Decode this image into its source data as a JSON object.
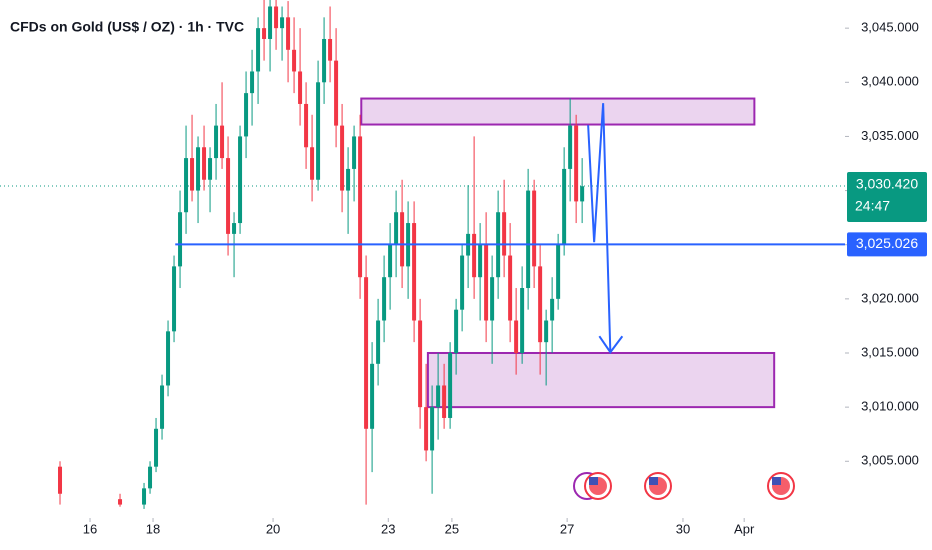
{
  "chart_data": {
    "type": "candlestick",
    "title": "CFDs on Gold (US$ / OZ) · 1h · TVC",
    "xlim": [
      0,
      140.8
    ],
    "ylim": [
      3000.5,
      3047.6
    ],
    "xticks": [
      {
        "value": 15,
        "label": "16"
      },
      {
        "value": 25.5,
        "label": "18"
      },
      {
        "value": 45.5,
        "label": "20"
      },
      {
        "value": 64.7,
        "label": "23"
      },
      {
        "value": 75.3,
        "label": "25"
      },
      {
        "value": 94.5,
        "label": "27"
      },
      {
        "value": 113.8,
        "label": "30"
      },
      {
        "value": 124,
        "label": "Apr"
      }
    ],
    "yticks": [
      {
        "value": 3005,
        "label": "3,005.000"
      },
      {
        "value": 3010,
        "label": "3,010.000"
      },
      {
        "value": 3015,
        "label": "3,015.000"
      },
      {
        "value": 3020,
        "label": "3,020.000"
      },
      {
        "value": 3025,
        "label": "3,025.000"
      },
      {
        "value": 3030,
        "label": "3,030.000"
      },
      {
        "value": 3035,
        "label": "3,035.000"
      },
      {
        "value": 3040,
        "label": "3,040.000"
      },
      {
        "value": 3045,
        "label": "3,045.000"
      }
    ],
    "up_color": "#089981",
    "down_color": "#f23645",
    "x": [
      10,
      20,
      24,
      25,
      26,
      27,
      28,
      29,
      30,
      31,
      32,
      33,
      34,
      35,
      36,
      37,
      38,
      39,
      40,
      41,
      42,
      43,
      44,
      45,
      46,
      47,
      48,
      49,
      50,
      51,
      52,
      53,
      54,
      55,
      56,
      57,
      58,
      59,
      60,
      61,
      62,
      63,
      64,
      65,
      66,
      67,
      68,
      69,
      70,
      71,
      72,
      73,
      74,
      75,
      76,
      77,
      78,
      79,
      80,
      81,
      82,
      83,
      84,
      85,
      86,
      87,
      88,
      89,
      90,
      91,
      92,
      93,
      94,
      95,
      96,
      97
    ],
    "open": [
      3004.5,
      3001.5,
      3001,
      3002.5,
      3004.5,
      3008,
      3012,
      3017,
      3023,
      3028,
      3033,
      3030,
      3034,
      3031,
      3033,
      3036,
      3033,
      3026,
      3027,
      3035,
      3039,
      3041,
      3045,
      3044,
      3047,
      3045,
      3046,
      3043,
      3041,
      3038,
      3034,
      3031,
      3040,
      3044,
      3042,
      3036,
      3030,
      3032,
      3035,
      3022,
      3008,
      3014,
      3018,
      3022,
      3025,
      3028,
      3023,
      3027,
      3018,
      3010,
      3006,
      3010,
      3012,
      3009,
      3015,
      3019,
      3024,
      3026,
      3022,
      3025,
      3018,
      3022,
      3028,
      3024,
      3018,
      3015,
      3021,
      3030,
      3023,
      3016,
      3018,
      3020,
      3025,
      3032,
      3036,
      3029
    ],
    "high": [
      3005,
      3002,
      3003,
      3005,
      3009,
      3013,
      3018,
      3024,
      3030,
      3036,
      3037,
      3035,
      3036,
      3034,
      3038,
      3040,
      3035,
      3028,
      3036,
      3041,
      3043,
      3046,
      3048,
      3048,
      3048,
      3047,
      3047.5,
      3046,
      3045,
      3040,
      3037,
      3042,
      3046,
      3047,
      3045,
      3038,
      3034,
      3036,
      3037,
      3024,
      3016,
      3020,
      3024,
      3027,
      3030,
      3031,
      3029,
      3029,
      3020,
      3014,
      3012,
      3015,
      3014,
      3016,
      3020,
      3025,
      3030.5,
      3035,
      3027,
      3028,
      3024,
      3030,
      3031,
      3027,
      3021,
      3023,
      3032,
      3031,
      3025,
      3019,
      3022,
      3026,
      3034,
      3038.5,
      3037,
      3033
    ],
    "low": [
      3001,
      3000.8,
      3000.6,
      3002,
      3004,
      3007,
      3011,
      3016,
      3021,
      3026,
      3029,
      3027,
      3030,
      3028,
      3031,
      3032,
      3024,
      3022,
      3026,
      3033,
      3036,
      3038,
      3042,
      3041,
      3043,
      3042,
      3040,
      3039,
      3036,
      3032,
      3029,
      3030,
      3038,
      3040,
      3034,
      3028,
      3026,
      3029,
      3020,
      3001,
      3004,
      3012,
      3016,
      3019,
      3022,
      3021,
      3020,
      3016,
      3008,
      3005,
      3002,
      3007,
      3008,
      3008,
      3013,
      3017,
      3021,
      3020,
      3018,
      3016,
      3014,
      3020,
      3022,
      3016,
      3013,
      3014,
      3019,
      3021,
      3013,
      3012,
      3015,
      3019,
      3024,
      3029,
      3027,
      3027
    ],
    "close": [
      3002,
      3001,
      3002.5,
      3004.5,
      3008,
      3012,
      3017,
      3023,
      3028,
      3033,
      3030,
      3034,
      3031,
      3033,
      3036,
      3033,
      3026,
      3027,
      3035,
      3039,
      3041,
      3045,
      3044,
      3047,
      3045,
      3046,
      3043,
      3041,
      3038,
      3034,
      3031,
      3040,
      3044,
      3042,
      3036,
      3030,
      3032,
      3035,
      3022,
      3008,
      3014,
      3018,
      3022,
      3025,
      3028,
      3023,
      3027,
      3018,
      3010,
      3006,
      3010,
      3012,
      3009,
      3015,
      3019,
      3024,
      3026,
      3022,
      3025,
      3018,
      3022,
      3028,
      3024,
      3018,
      3015,
      3021,
      3030,
      3023,
      3016,
      3018,
      3020,
      3025,
      3032,
      3036,
      3029,
      3030.4
    ],
    "zones": [
      {
        "x": [
          60.2,
          125.7
        ],
        "y": [
          3036.1,
          3038.5
        ]
      },
      {
        "x": [
          71.3,
          129
        ],
        "y": [
          3010,
          3015
        ]
      }
    ],
    "support": {
      "value": 3025.026,
      "label": "3,025.026",
      "x_start": 29.2,
      "color": "#2962ff"
    },
    "last_price": {
      "value": 3030.42,
      "label": "3,030.420",
      "countdown": "24:47",
      "color": "#089981"
    },
    "arrow": {
      "x": [
        98,
        99,
        100.5,
        101.7
      ],
      "y": [
        3036.04,
        3025.23,
        3038.07,
        3015.07
      ],
      "color": "#2962ff"
    }
  }
}
